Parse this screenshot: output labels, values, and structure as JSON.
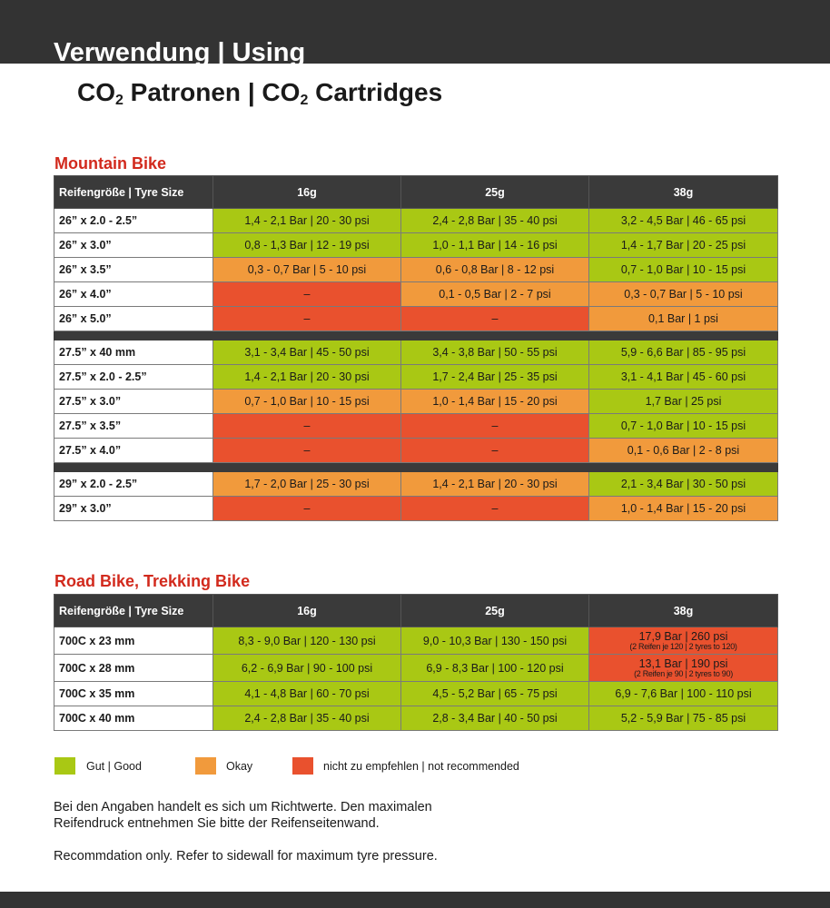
{
  "header": {
    "title": "Verwendung | Using",
    "subtitle": [
      "CO",
      "2",
      " Patronen | CO",
      "2",
      " Cartridges"
    ]
  },
  "tables": [
    {
      "title": "Mountain Bike",
      "columns": [
        "Reifengröße | Tyre Size",
        "16g",
        "25g",
        "38g"
      ],
      "groups": [
        [
          {
            "size": "26” x 2.0 - 2.5”",
            "cells": [
              {
                "text": "1,4 - 2,1 Bar | 20 - 30 psi",
                "color": "#a9c814"
              },
              {
                "text": "2,4 - 2,8 Bar | 35 - 40 psi",
                "color": "#a9c814"
              },
              {
                "text": "3,2 - 4,5 Bar | 46 - 65 psi",
                "color": "#a9c814"
              }
            ]
          },
          {
            "size": "26” x 3.0”",
            "cells": [
              {
                "text": "0,8 - 1,3 Bar | 12 - 19 psi",
                "color": "#a9c814"
              },
              {
                "text": "1,0 - 1,1 Bar | 14 - 16 psi",
                "color": "#a9c814"
              },
              {
                "text": "1,4 - 1,7 Bar | 20 - 25 psi",
                "color": "#a9c814"
              }
            ]
          },
          {
            "size": "26” x 3.5”",
            "cells": [
              {
                "text": "0,3 - 0,7 Bar | 5 - 10 psi",
                "color": "#f19a3c"
              },
              {
                "text": "0,6 - 0,8 Bar | 8 - 12 psi",
                "color": "#f19a3c"
              },
              {
                "text": "0,7 - 1,0 Bar | 10 - 15 psi",
                "color": "#a9c814"
              }
            ]
          },
          {
            "size": "26” x 4.0”",
            "cells": [
              {
                "text": "–",
                "color": "#e9512e"
              },
              {
                "text": "0,1 - 0,5 Bar | 2 - 7 psi",
                "color": "#f19a3c"
              },
              {
                "text": "0,3 - 0,7 Bar | 5 - 10 psi",
                "color": "#f19a3c"
              }
            ]
          },
          {
            "size": "26” x 5.0”",
            "cells": [
              {
                "text": "–",
                "color": "#e9512e"
              },
              {
                "text": "–",
                "color": "#e9512e"
              },
              {
                "text": "0,1 Bar | 1 psi",
                "color": "#f19a3c"
              }
            ]
          }
        ],
        [
          {
            "size": "27.5” x 40 mm",
            "cells": [
              {
                "text": "3,1 - 3,4 Bar | 45 - 50 psi",
                "color": "#a9c814"
              },
              {
                "text": "3,4 - 3,8 Bar | 50 - 55 psi",
                "color": "#a9c814"
              },
              {
                "text": "5,9 - 6,6 Bar | 85 - 95 psi",
                "color": "#a9c814"
              }
            ]
          },
          {
            "size": "27.5” x 2.0 - 2.5”",
            "cells": [
              {
                "text": "1,4 - 2,1 Bar | 20 - 30 psi",
                "color": "#a9c814"
              },
              {
                "text": "1,7 - 2,4 Bar | 25 - 35 psi",
                "color": "#a9c814"
              },
              {
                "text": "3,1 - 4,1 Bar | 45 - 60 psi",
                "color": "#a9c814"
              }
            ]
          },
          {
            "size": "27.5” x 3.0”",
            "cells": [
              {
                "text": "0,7 - 1,0 Bar | 10 - 15 psi",
                "color": "#f19a3c"
              },
              {
                "text": "1,0 - 1,4 Bar | 15 - 20 psi",
                "color": "#f19a3c"
              },
              {
                "text": "1,7 Bar | 25 psi",
                "color": "#a9c814"
              }
            ]
          },
          {
            "size": "27.5” x 3.5”",
            "cells": [
              {
                "text": "–",
                "color": "#e9512e"
              },
              {
                "text": "–",
                "color": "#e9512e"
              },
              {
                "text": "0,7 - 1,0 Bar | 10 - 15 psi",
                "color": "#a9c814"
              }
            ]
          },
          {
            "size": "27.5” x 4.0”",
            "cells": [
              {
                "text": "–",
                "color": "#e9512e"
              },
              {
                "text": "–",
                "color": "#e9512e"
              },
              {
                "text": "0,1 - 0,6 Bar | 2 - 8 psi",
                "color": "#f19a3c"
              }
            ]
          }
        ],
        [
          {
            "size": "29” x 2.0 - 2.5”",
            "cells": [
              {
                "text": "1,7 - 2,0 Bar | 25 - 30 psi",
                "color": "#f19a3c"
              },
              {
                "text": "1,4 - 2,1 Bar | 20 - 30 psi",
                "color": "#f19a3c"
              },
              {
                "text": "2,1 - 3,4 Bar | 30 - 50 psi",
                "color": "#a9c814"
              }
            ]
          },
          {
            "size": "29” x 3.0”",
            "cells": [
              {
                "text": "–",
                "color": "#e9512e"
              },
              {
                "text": "–",
                "color": "#e9512e"
              },
              {
                "text": "1,0 - 1,4 Bar | 15 - 20 psi",
                "color": "#f19a3c"
              }
            ]
          }
        ]
      ]
    },
    {
      "title": "Road Bike, Trekking Bike",
      "columns": [
        "Reifengröße | Tyre Size",
        "16g",
        "25g",
        "38g"
      ],
      "groups": [
        [
          {
            "size": "700C x 23 mm",
            "cells": [
              {
                "text": "8,3 - 9,0 Bar | 120 - 130 psi",
                "color": "#a9c814"
              },
              {
                "text": "9,0 - 10,3 Bar | 130 - 150 psi",
                "color": "#a9c814"
              },
              {
                "text": "17,9 Bar | 260 psi",
                "note": "(2 Reifen je 120 | 2 tyres to 120)",
                "color": "#e9512e"
              }
            ]
          },
          {
            "size": "700C x 28 mm",
            "cells": [
              {
                "text": "6,2 - 6,9 Bar | 90 - 100 psi",
                "color": "#a9c814"
              },
              {
                "text": "6,9 - 8,3 Bar | 100 - 120 psi",
                "color": "#a9c814"
              },
              {
                "text": "13,1 Bar | 190 psi",
                "note": "(2 Reifen je 90 | 2 tyres to 90)",
                "color": "#e9512e"
              }
            ]
          },
          {
            "size": "700C x 35 mm",
            "cells": [
              {
                "text": "4,1 - 4,8 Bar | 60 - 70 psi",
                "color": "#a9c814"
              },
              {
                "text": "4,5 - 5,2 Bar | 65 - 75 psi",
                "color": "#a9c814"
              },
              {
                "text": "6,9 - 7,6 Bar | 100 - 110 psi",
                "color": "#a9c814"
              }
            ]
          },
          {
            "size": "700C x 40 mm",
            "cells": [
              {
                "text": "2,4 - 2,8 Bar | 35 - 40 psi",
                "color": "#a9c814"
              },
              {
                "text": "2,8 - 3,4 Bar | 40 - 50 psi",
                "color": "#a9c814"
              },
              {
                "text": "5,2 - 5,9 Bar | 75 - 85 psi",
                "color": "#a9c814"
              }
            ]
          }
        ]
      ]
    }
  ],
  "legend": [
    {
      "label": "Gut | Good",
      "color": "#a9c814"
    },
    {
      "label": "Okay",
      "color": "#f19a3c"
    },
    {
      "label": "nicht zu empfehlen | not recommended",
      "color": "#e9512e"
    }
  ],
  "notes": [
    "Bei den Angaben handelt es sich um Richtwerte. Den maximalen",
    "Reifendruck entnehmen Sie bitte der Reifenseitenwand.",
    "Recommdation only. Refer to sidewall for maximum tyre pressure."
  ]
}
